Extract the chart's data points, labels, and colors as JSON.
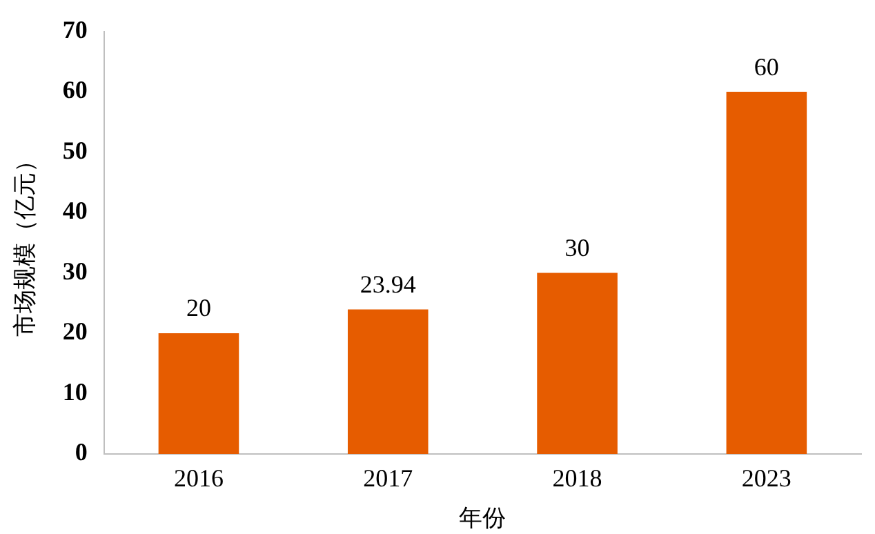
{
  "chart_data": {
    "type": "bar",
    "xlabel": "年份",
    "ylabel": "市场规模（亿元）",
    "categories": [
      "2016",
      "2017",
      "2018",
      "2023"
    ],
    "series": [
      {
        "color": "#e65c00",
        "values": [
          20,
          23.94,
          30,
          60
        ]
      }
    ],
    "ylim": [
      0,
      70
    ],
    "yticks": [
      0,
      10,
      20,
      30,
      40,
      50,
      60,
      70
    ],
    "grid": false,
    "legend": false,
    "data_labels": true
  }
}
